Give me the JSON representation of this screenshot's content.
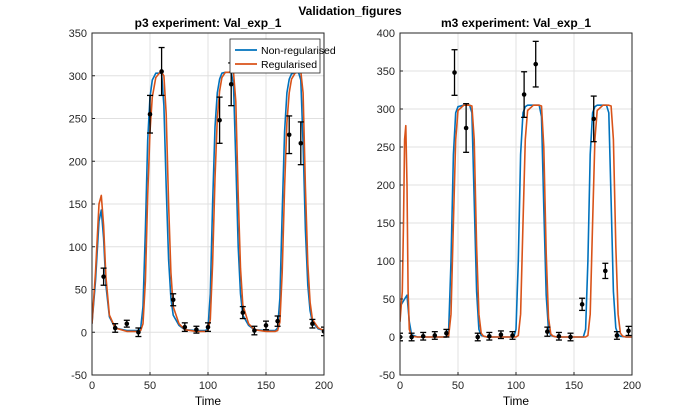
{
  "figure": {
    "suptitle": "Validation_figures"
  },
  "colors": {
    "non_regularised": "#0072BD",
    "regularised": "#D95319",
    "data_points": "#000000"
  },
  "chart_data": [
    {
      "type": "line",
      "title": "p3 experiment: Val_exp_1",
      "xlabel": "Time",
      "ylabel": "",
      "xlim": [
        0,
        200
      ],
      "ylim": [
        -50,
        350
      ],
      "xticks": [
        0,
        50,
        100,
        150,
        200
      ],
      "yticks": [
        -50,
        0,
        50,
        100,
        150,
        200,
        250,
        300,
        350
      ],
      "grid": true,
      "legend": {
        "placement": "top-right",
        "entries": [
          "Non-regularised",
          "Regularised"
        ]
      },
      "series": [
        {
          "name": "Non-regularised",
          "color": "#0072BD",
          "x": [
            0,
            3,
            6,
            8,
            10,
            12,
            15,
            20,
            30,
            40,
            42,
            44,
            46,
            48,
            50,
            52,
            55,
            58,
            60,
            62,
            64,
            66,
            68,
            70,
            75,
            80,
            90,
            98,
            100,
            102,
            104,
            106,
            108,
            110,
            112,
            115,
            118,
            120,
            122,
            124,
            126,
            128,
            130,
            135,
            140,
            150,
            158,
            160,
            162,
            164,
            166,
            168,
            170,
            172,
            175,
            178,
            180,
            182,
            184,
            186,
            188,
            190,
            195,
            200
          ],
          "y": [
            10,
            60,
            130,
            143,
            110,
            55,
            18,
            5,
            2,
            2,
            5,
            30,
            120,
            225,
            275,
            295,
            303,
            303,
            303,
            265,
            170,
            85,
            40,
            20,
            8,
            3,
            2,
            2,
            5,
            45,
            150,
            240,
            280,
            296,
            303,
            304,
            304,
            304,
            290,
            200,
            100,
            45,
            20,
            8,
            3,
            2,
            2,
            5,
            40,
            140,
            235,
            280,
            296,
            302,
            304,
            304,
            295,
            220,
            120,
            55,
            25,
            12,
            4,
            2
          ]
        },
        {
          "name": "Regularised",
          "color": "#D95319",
          "x": [
            0,
            3,
            6,
            8,
            10,
            12,
            15,
            20,
            30,
            40,
            42,
            44,
            46,
            48,
            50,
            52,
            55,
            58,
            60,
            62,
            64,
            66,
            68,
            70,
            75,
            80,
            90,
            98,
            100,
            102,
            104,
            106,
            108,
            110,
            112,
            115,
            118,
            120,
            122,
            124,
            126,
            128,
            130,
            135,
            140,
            150,
            158,
            160,
            162,
            164,
            166,
            168,
            170,
            172,
            175,
            178,
            180,
            182,
            184,
            186,
            188,
            190,
            195,
            200
          ],
          "y": [
            10,
            70,
            150,
            160,
            125,
            65,
            20,
            5,
            1,
            1,
            2,
            10,
            60,
            160,
            235,
            275,
            298,
            303,
            304,
            300,
            255,
            150,
            70,
            30,
            10,
            3,
            1,
            1,
            2,
            15,
            80,
            180,
            250,
            282,
            298,
            304,
            304,
            305,
            304,
            270,
            160,
            75,
            32,
            10,
            3,
            1,
            1,
            2,
            12,
            70,
            170,
            245,
            280,
            296,
            303,
            305,
            305,
            280,
            170,
            80,
            35,
            15,
            5,
            2
          ]
        }
      ],
      "data_points": [
        {
          "x": 10,
          "y": 65,
          "err": 10
        },
        {
          "x": 20,
          "y": 5,
          "err": 5
        },
        {
          "x": 30,
          "y": 10,
          "err": 4
        },
        {
          "x": 40,
          "y": 0,
          "err": 5
        },
        {
          "x": 50,
          "y": 255,
          "err": 22
        },
        {
          "x": 60,
          "y": 305,
          "err": 28
        },
        {
          "x": 70,
          "y": 38,
          "err": 7
        },
        {
          "x": 80,
          "y": 6,
          "err": 5
        },
        {
          "x": 90,
          "y": 3,
          "err": 4
        },
        {
          "x": 100,
          "y": 6,
          "err": 5
        },
        {
          "x": 110,
          "y": 248,
          "err": 27
        },
        {
          "x": 120,
          "y": 290,
          "err": 25
        },
        {
          "x": 130,
          "y": 23,
          "err": 7
        },
        {
          "x": 140,
          "y": 2,
          "err": 5
        },
        {
          "x": 150,
          "y": 8,
          "err": 5
        },
        {
          "x": 160,
          "y": 13,
          "err": 6
        },
        {
          "x": 170,
          "y": 231,
          "err": 22
        },
        {
          "x": 180,
          "y": 221,
          "err": 25
        },
        {
          "x": 190,
          "y": 10,
          "err": 5
        },
        {
          "x": 200,
          "y": 1,
          "err": 5
        }
      ]
    },
    {
      "type": "line",
      "title": "m3 experiment: Val_exp_1",
      "xlabel": "Time",
      "ylabel": "",
      "xlim": [
        0,
        200
      ],
      "ylim": [
        -50,
        400
      ],
      "xticks": [
        0,
        50,
        100,
        150,
        200
      ],
      "yticks": [
        -50,
        0,
        50,
        100,
        150,
        200,
        250,
        300,
        350,
        400
      ],
      "grid": true,
      "legend": null,
      "series": [
        {
          "name": "Non-regularised",
          "color": "#0072BD",
          "x": [
            0,
            2,
            4,
            6,
            8,
            10,
            15,
            20,
            30,
            40,
            42,
            44,
            46,
            48,
            50,
            55,
            60,
            62,
            64,
            66,
            68,
            70,
            75,
            80,
            90,
            98,
            100,
            102,
            104,
            106,
            108,
            110,
            115,
            118,
            120,
            122,
            124,
            126,
            128,
            130,
            135,
            140,
            150,
            158,
            160,
            162,
            164,
            166,
            168,
            170,
            175,
            178,
            180,
            182,
            184,
            186,
            188,
            190,
            195,
            200
          ],
          "y": [
            40,
            45,
            50,
            55,
            20,
            3,
            0,
            0,
            0,
            0,
            10,
            100,
            240,
            295,
            303,
            305,
            305,
            295,
            180,
            60,
            10,
            2,
            0,
            0,
            0,
            0,
            10,
            100,
            240,
            295,
            303,
            305,
            305,
            305,
            305,
            290,
            170,
            55,
            10,
            2,
            0,
            0,
            0,
            0,
            10,
            100,
            240,
            295,
            303,
            305,
            305,
            305,
            295,
            180,
            60,
            12,
            3,
            1,
            0,
            0
          ]
        },
        {
          "name": "Regularised",
          "color": "#D95319",
          "x": [
            0,
            2,
            3,
            4,
            5,
            6,
            7,
            8,
            10,
            15,
            20,
            30,
            40,
            42,
            44,
            46,
            48,
            50,
            55,
            60,
            62,
            64,
            66,
            68,
            70,
            72,
            75,
            80,
            90,
            100,
            102,
            104,
            106,
            108,
            110,
            115,
            120,
            122,
            124,
            126,
            128,
            130,
            132,
            135,
            140,
            150,
            160,
            162,
            164,
            166,
            168,
            170,
            175,
            180,
            182,
            184,
            186,
            188,
            190,
            192,
            195,
            200
          ],
          "y": [
            20,
            60,
            150,
            260,
            278,
            200,
            60,
            10,
            1,
            0,
            0,
            0,
            0,
            2,
            30,
            150,
            260,
            298,
            305,
            305,
            304,
            260,
            120,
            30,
            5,
            1,
            0,
            0,
            0,
            0,
            2,
            30,
            150,
            260,
            298,
            305,
            305,
            304,
            250,
            110,
            25,
            4,
            1,
            0,
            0,
            0,
            0,
            2,
            30,
            150,
            260,
            298,
            305,
            305,
            304,
            260,
            120,
            30,
            5,
            1,
            0,
            0
          ]
        }
      ],
      "data_points": [
        {
          "x": 0,
          "y": 0,
          "err": 5
        },
        {
          "x": 10,
          "y": 0,
          "err": 5
        },
        {
          "x": 20,
          "y": 1,
          "err": 5
        },
        {
          "x": 30,
          "y": 2,
          "err": 5
        },
        {
          "x": 40,
          "y": 5,
          "err": 5
        },
        {
          "x": 47,
          "y": 348,
          "err": 30
        },
        {
          "x": 57,
          "y": 275,
          "err": 32
        },
        {
          "x": 67,
          "y": 0,
          "err": 5
        },
        {
          "x": 77,
          "y": 1,
          "err": 5
        },
        {
          "x": 87,
          "y": 3,
          "err": 5
        },
        {
          "x": 97,
          "y": 2,
          "err": 5
        },
        {
          "x": 107,
          "y": 319,
          "err": 30
        },
        {
          "x": 117,
          "y": 359,
          "err": 30
        },
        {
          "x": 127,
          "y": 7,
          "err": 6
        },
        {
          "x": 137,
          "y": 1,
          "err": 5
        },
        {
          "x": 147,
          "y": 0,
          "err": 5
        },
        {
          "x": 157,
          "y": 43,
          "err": 8
        },
        {
          "x": 167,
          "y": 287,
          "err": 30
        },
        {
          "x": 177,
          "y": 87,
          "err": 10
        },
        {
          "x": 187,
          "y": 2,
          "err": 5
        },
        {
          "x": 197,
          "y": 8,
          "err": 6
        }
      ]
    }
  ]
}
